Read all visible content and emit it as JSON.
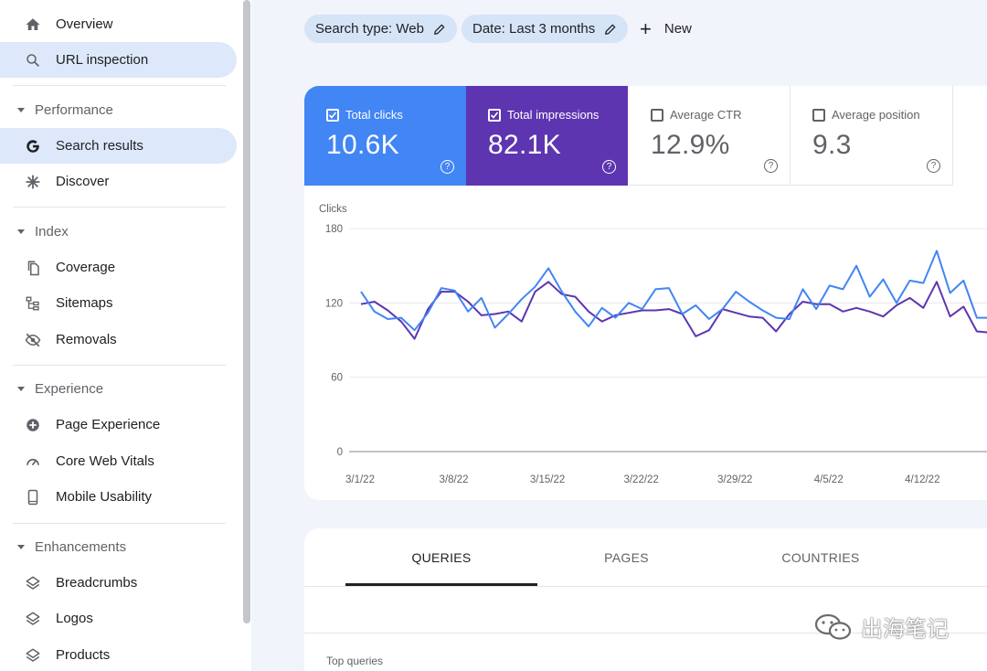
{
  "sidebar": {
    "items_top": [
      {
        "label": "Overview",
        "icon": "home-icon"
      },
      {
        "label": "URL inspection",
        "icon": "search-icon",
        "active": true
      }
    ],
    "sections": [
      {
        "title": "Performance",
        "items": [
          {
            "label": "Search results",
            "icon": "google-icon",
            "active": true
          },
          {
            "label": "Discover",
            "icon": "asterisk-icon"
          }
        ]
      },
      {
        "title": "Index",
        "items": [
          {
            "label": "Coverage",
            "icon": "copy-icon"
          },
          {
            "label": "Sitemaps",
            "icon": "sitemap-icon"
          },
          {
            "label": "Removals",
            "icon": "eye-off-icon"
          }
        ]
      },
      {
        "title": "Experience",
        "items": [
          {
            "label": "Page Experience",
            "icon": "plus-circle-icon"
          },
          {
            "label": "Core Web Vitals",
            "icon": "gauge-icon"
          },
          {
            "label": "Mobile Usability",
            "icon": "phone-icon"
          }
        ]
      },
      {
        "title": "Enhancements",
        "items": [
          {
            "label": "Breadcrumbs",
            "icon": "layers-icon"
          },
          {
            "label": "Logos",
            "icon": "layers-icon"
          },
          {
            "label": "Products",
            "icon": "layers-icon"
          }
        ]
      }
    ]
  },
  "filters": {
    "search_type": "Search type: Web",
    "date": "Date: Last 3 months",
    "new_label": "New"
  },
  "metrics": {
    "clicks": {
      "label": "Total clicks",
      "value": "10.6K",
      "checked": true,
      "color": "#4285f4"
    },
    "impressions": {
      "label": "Total impressions",
      "value": "82.1K",
      "checked": true,
      "color": "#5e35b1"
    },
    "ctr": {
      "label": "Average CTR",
      "value": "12.9%",
      "checked": false
    },
    "position": {
      "label": "Average position",
      "value": "9.3",
      "checked": false
    }
  },
  "chart_data": {
    "type": "line",
    "ylabel": "Clicks",
    "ylim": [
      0,
      180
    ],
    "yticks": [
      0,
      60,
      120,
      180
    ],
    "xtick_labels": [
      "3/1/22",
      "3/8/22",
      "3/15/22",
      "3/22/22",
      "3/29/22",
      "4/5/22",
      "4/12/22"
    ],
    "grid": true,
    "series": [
      {
        "color": "#4285f4",
        "values": [
          129,
          113,
          107,
          108,
          98,
          112,
          132,
          130,
          113,
          124,
          100,
          111,
          123,
          133,
          148,
          129,
          113,
          101,
          116,
          108,
          120,
          115,
          131,
          132,
          111,
          118,
          107,
          115,
          129,
          121,
          114,
          108,
          107,
          131,
          115,
          134,
          131,
          150,
          125,
          139,
          120,
          138,
          136,
          162,
          128,
          138,
          108,
          108
        ]
      },
      {
        "color": "#5e35b1",
        "values": [
          119,
          121,
          114,
          105,
          91,
          115,
          129,
          129,
          121,
          110,
          111,
          113,
          105,
          129,
          137,
          127,
          125,
          113,
          105,
          110,
          112,
          114,
          114,
          115,
          111,
          93,
          98,
          115,
          112,
          109,
          108,
          97,
          111,
          121,
          119,
          119,
          113,
          116,
          113,
          109,
          118,
          124,
          116,
          137,
          109,
          117,
          97,
          96
        ]
      }
    ]
  },
  "tabs": [
    "QUERIES",
    "PAGES",
    "COUNTRIES"
  ],
  "table": {
    "title": "Top queries"
  },
  "watermark": "出海笔记"
}
